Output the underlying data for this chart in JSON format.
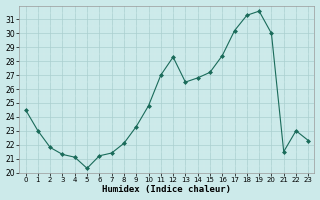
{
  "x": [
    0,
    1,
    2,
    3,
    4,
    5,
    6,
    7,
    8,
    9,
    10,
    11,
    12,
    13,
    14,
    15,
    16,
    17,
    18,
    19,
    20,
    21,
    22,
    23
  ],
  "y": [
    24.5,
    23.0,
    21.8,
    21.3,
    21.1,
    20.3,
    21.2,
    21.4,
    22.1,
    23.3,
    24.8,
    27.0,
    28.3,
    26.5,
    26.8,
    27.2,
    28.4,
    30.2,
    31.3,
    31.6,
    30.0,
    21.5,
    23.0,
    22.3
  ],
  "line_color": "#1a6b5a",
  "marker_color": "#1a6b5a",
  "bg_color": "#cceaea",
  "grid_color_major": "#b8d8d8",
  "grid_color_minor": "#d4ecec",
  "xlabel": "Humidex (Indice chaleur)",
  "xlim": [
    -0.5,
    23.5
  ],
  "ylim": [
    20,
    32
  ],
  "yticks": [
    20,
    21,
    22,
    23,
    24,
    25,
    26,
    27,
    28,
    29,
    30,
    31
  ],
  "xticks": [
    0,
    1,
    2,
    3,
    4,
    5,
    6,
    7,
    8,
    9,
    10,
    11,
    12,
    13,
    14,
    15,
    16,
    17,
    18,
    19,
    20,
    21,
    22,
    23
  ]
}
